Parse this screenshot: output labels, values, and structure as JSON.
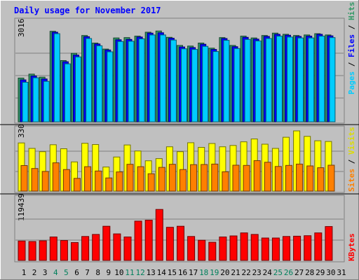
{
  "chart_data": {
    "type": "bar",
    "title": "Daily usage for November 2017",
    "categories": [
      "1",
      "2",
      "3",
      "4",
      "5",
      "6",
      "7",
      "8",
      "9",
      "10",
      "11",
      "12",
      "13",
      "14",
      "15",
      "16",
      "17",
      "18",
      "19",
      "20",
      "21",
      "22",
      "23",
      "24",
      "25",
      "26",
      "27",
      "28",
      "29",
      "30",
      "31"
    ],
    "weekend_days": [
      4,
      5,
      11,
      12,
      18,
      19,
      25,
      26
    ],
    "colors": {
      "background": "#c0c0c0",
      "title": "#0000ff",
      "hits": "#339966",
      "files": "#0000ff",
      "pages": "#00ccff",
      "visits": "#ffff00",
      "sites": "#ff8000",
      "kbytes": "#ff0000",
      "separator": "#000000",
      "weekend_label": "#00805c",
      "weekday_label": "#000000"
    },
    "panels": [
      {
        "name": "hits-files-pages",
        "ymax_label": "3016",
        "ymax": 3016,
        "legend": [
          "Pages",
          "Files",
          "Hits"
        ],
        "series": [
          {
            "name": "Hits",
            "values": [
              1450,
              1580,
              1480,
              3000,
              2030,
              2270,
              2860,
              2610,
              2410,
              2780,
              2790,
              2840,
              2970,
              3010,
              2800,
              2530,
              2510,
              2610,
              2440,
              2790,
              2530,
              2840,
              2780,
              2860,
              2940,
              2900,
              2860,
              2880,
              2920,
              2880,
              0
            ]
          },
          {
            "name": "Files",
            "values": [
              1390,
              1520,
              1420,
              2970,
              1990,
              2210,
              2820,
              2580,
              2380,
              2720,
              2730,
              2810,
              2940,
              2950,
              2770,
              2480,
              2460,
              2570,
              2400,
              2760,
              2490,
              2800,
              2740,
              2830,
              2900,
              2870,
              2830,
              2840,
              2900,
              2850,
              0
            ]
          },
          {
            "name": "Pages",
            "values": [
              1310,
              1460,
              1340,
              2920,
              1920,
              2150,
              2760,
              2520,
              2320,
              2660,
              2670,
              2750,
              2880,
              2880,
              2710,
              2420,
              2400,
              2500,
              2330,
              2700,
              2430,
              2730,
              2680,
              2760,
              2840,
              2810,
              2780,
              2780,
              2840,
              2790,
              0
            ]
          }
        ]
      },
      {
        "name": "visits-sites",
        "ymax_label": "330",
        "ymax": 330,
        "legend": [
          "Sites",
          "Visits"
        ],
        "series": [
          {
            "name": "Visits",
            "values": [
              264,
              234,
              216,
              254,
              232,
              160,
              262,
              255,
              132,
              187,
              253,
              220,
              166,
              178,
              243,
              216,
              265,
              240,
              261,
              243,
              250,
              270,
              286,
              257,
              234,
              295,
              330,
              300,
              276,
              272,
              0
            ]
          },
          {
            "name": "Sites",
            "values": [
              140,
              124,
              108,
              155,
              118,
              70,
              134,
              110,
              72,
              105,
              147,
              134,
              95,
              130,
              147,
              118,
              145,
              146,
              148,
              106,
              142,
              141,
              167,
              158,
              135,
              141,
              148,
              138,
              128,
              142,
              0
            ]
          }
        ]
      },
      {
        "name": "kbytes",
        "ymax_label": "119439",
        "ymax": 119439,
        "legend": [
          "KBytes"
        ],
        "series": [
          {
            "name": "KBytes",
            "values": [
              38000,
              37000,
              38500,
              46000,
              39000,
              35000,
              47000,
              51000,
              67000,
              52000,
              46000,
              77000,
              79000,
              100000,
              65000,
              67000,
              47000,
              39500,
              35500,
              46000,
              48000,
              54000,
              51000,
              44000,
              44000,
              47000,
              47500,
              48500,
              54000,
              66500,
              0
            ]
          }
        ]
      }
    ]
  }
}
